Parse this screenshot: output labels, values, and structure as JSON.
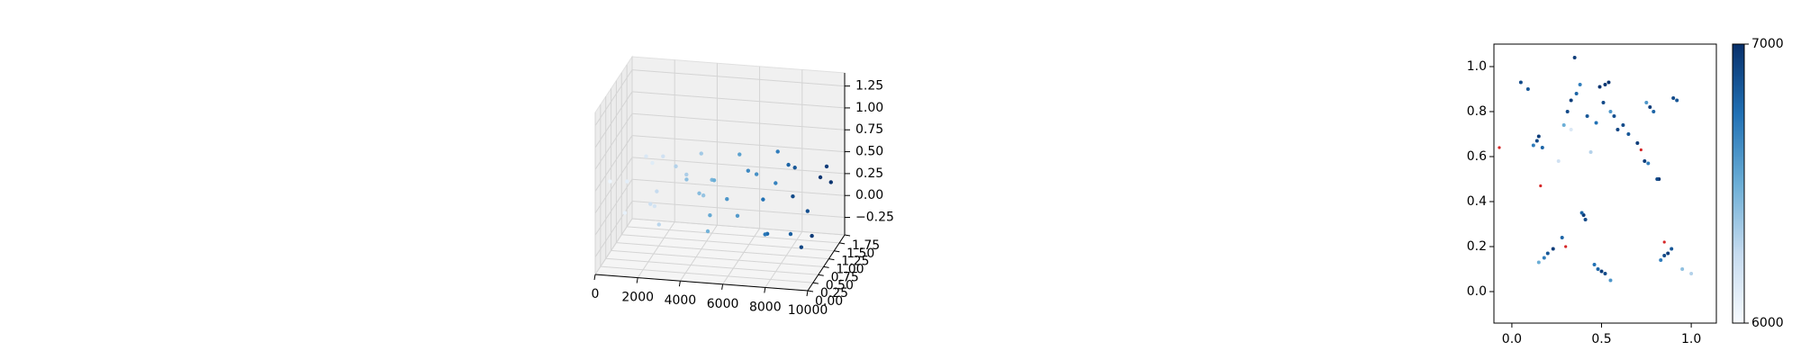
{
  "chart_data": [
    {
      "type": "scatter3d",
      "x": [
        500,
        1000,
        1500,
        2000,
        2500,
        3000,
        3500,
        4000,
        4500,
        5000,
        5500,
        6000,
        6500,
        7000,
        7500,
        8000,
        8500,
        9000,
        9500,
        9800,
        800,
        1800,
        2800,
        3800,
        4800,
        5800,
        6800,
        7800,
        8800,
        9600,
        1200,
        2200,
        3200,
        4200,
        5200,
        6200,
        7200,
        8200,
        9200,
        9900
      ],
      "y": [
        0.2,
        0.5,
        0.9,
        1.2,
        0.4,
        0.8,
        1.5,
        0.3,
        1.0,
        0.6,
        1.3,
        0.2,
        0.7,
        1.6,
        0.4,
        1.1,
        0.9,
        0.3,
        1.4,
        0.8,
        0.6,
        1.0,
        0.2,
        1.3,
        0.5,
        0.9,
        1.7,
        0.3,
        1.2,
        0.6,
        1.5,
        0.4,
        1.1,
        0.7,
        0.2,
        1.4,
        0.8,
        1.0,
        0.5,
        1.2
      ],
      "z": [
        0.55,
        0.45,
        0.6,
        0.5,
        0.4,
        0.55,
        0.45,
        0.6,
        0.35,
        0.5,
        0.55,
        0.45,
        0.6,
        0.5,
        0.4,
        0.55,
        0.6,
        0.5,
        0.45,
        0.55,
        0.05,
        0.0,
        0.1,
        0.05,
        -0.05,
        0.0,
        0.1,
        0.05,
        0.0,
        -0.05,
        0.3,
        0.25,
        0.35,
        0.3,
        0.25,
        0.3,
        -0.15,
        -0.2,
        -0.15,
        0.35
      ],
      "c": [
        6050,
        6100,
        6150,
        6200,
        6250,
        6300,
        6350,
        6400,
        6450,
        6500,
        6550,
        6600,
        6650,
        6700,
        6750,
        6800,
        6850,
        6900,
        6950,
        6980,
        6080,
        6180,
        6280,
        6380,
        6480,
        6580,
        6680,
        6780,
        6880,
        6960,
        6120,
        6220,
        6320,
        6420,
        6520,
        6620,
        6720,
        6820,
        6920,
        6990
      ],
      "cmap": [
        "#f7fbff",
        "#c6dbef",
        "#6baed6",
        "#2171b5",
        "#08306b"
      ],
      "clim": [
        6000,
        7000
      ],
      "xlim": [
        0,
        10000
      ],
      "ylim": [
        0,
        1.75
      ],
      "zlim": [
        -0.45,
        1.4
      ],
      "xticks": [
        0,
        2000,
        4000,
        6000,
        8000,
        10000
      ],
      "yticks": [
        {
          "value": 0,
          "label": "0.00"
        },
        {
          "value": 0.25,
          "label": "0.25"
        },
        {
          "value": 0.5,
          "label": "0.50"
        },
        {
          "value": 0.75,
          "label": "0.75"
        },
        {
          "value": 1,
          "label": "1.00"
        },
        {
          "value": 1.25,
          "label": "1.25"
        },
        {
          "value": 1.5,
          "label": "1.50"
        },
        {
          "value": 1.75,
          "label": "1.75"
        }
      ],
      "zticks": [
        {
          "value": -0.25,
          "label": "−0.25"
        },
        {
          "value": 0,
          "label": "0.00"
        },
        {
          "value": 0.25,
          "label": "0.25"
        },
        {
          "value": 0.5,
          "label": "0.50"
        },
        {
          "value": 0.75,
          "label": "0.75"
        },
        {
          "value": 1,
          "label": "1.00"
        },
        {
          "value": 1.25,
          "label": "1.25"
        }
      ]
    },
    {
      "type": "scatter",
      "x": [
        0.33,
        0.36,
        0.31,
        0.38,
        0.29,
        0.35,
        0.42,
        0.49,
        0.51,
        0.47,
        0.54,
        0.57,
        0.59,
        0.55,
        0.52,
        0.14,
        0.17,
        0.15,
        0.12,
        0.09,
        0.05,
        0.77,
        0.79,
        0.75,
        0.9,
        0.92,
        0.74,
        0.76,
        0.82,
        0.81,
        0.4,
        0.41,
        0.39,
        0.2,
        0.18,
        0.23,
        0.15,
        0.5,
        0.52,
        0.48,
        0.46,
        0.55,
        0.85,
        0.87,
        0.83,
        0.89,
        0.95,
        1.0,
        0.26,
        0.44,
        0.62,
        0.65,
        0.28,
        0.7,
        0.33
      ],
      "y": [
        0.85,
        0.88,
        0.8,
        0.92,
        0.74,
        1.04,
        0.78,
        0.91,
        0.84,
        0.75,
        0.93,
        0.78,
        0.72,
        0.8,
        0.92,
        0.67,
        0.64,
        0.69,
        0.65,
        0.9,
        0.93,
        0.82,
        0.8,
        0.84,
        0.86,
        0.85,
        0.58,
        0.57,
        0.5,
        0.5,
        0.34,
        0.32,
        0.35,
        0.17,
        0.15,
        0.19,
        0.13,
        0.09,
        0.08,
        0.1,
        0.12,
        0.05,
        0.16,
        0.17,
        0.14,
        0.19,
        0.1,
        0.08,
        0.58,
        0.62,
        0.74,
        0.7,
        0.24,
        0.66,
        0.72
      ],
      "c": [
        6950,
        6800,
        6900,
        6700,
        6500,
        6950,
        6850,
        6980,
        6900,
        6750,
        6990,
        6880,
        6920,
        6600,
        6970,
        6900,
        6800,
        6950,
        6700,
        6850,
        6900,
        6950,
        6800,
        6600,
        6900,
        6850,
        6950,
        6700,
        6990,
        6900,
        6950,
        6900,
        6800,
        6850,
        6700,
        6950,
        6500,
        6950,
        6900,
        6800,
        6750,
        6600,
        6900,
        6950,
        6700,
        6850,
        6400,
        6300,
        6200,
        6300,
        6900,
        6850,
        6800,
        6950,
        6150
      ],
      "highlight": {
        "color": "#d62728",
        "x": [
          -0.07,
          0.16,
          0.72,
          0.3,
          0.85
        ],
        "y": [
          0.64,
          0.47,
          0.63,
          0.2,
          0.22
        ]
      },
      "cmap": [
        "#f7fbff",
        "#c6dbef",
        "#6baed6",
        "#2171b5",
        "#08306b"
      ],
      "clim": [
        6000,
        7000
      ],
      "colorbar_ticks": [
        6000,
        7000
      ],
      "xlim": [
        -0.1,
        1.14
      ],
      "ylim": [
        -0.14,
        1.1
      ],
      "xticks": [
        {
          "value": 0,
          "label": "0.0"
        },
        {
          "value": 0.5,
          "label": "0.5"
        },
        {
          "value": 1,
          "label": "1.0"
        }
      ],
      "yticks": [
        {
          "value": 0,
          "label": "0.0"
        },
        {
          "value": 0.2,
          "label": "0.2"
        },
        {
          "value": 0.4,
          "label": "0.4"
        },
        {
          "value": 0.6,
          "label": "0.6"
        },
        {
          "value": 0.8,
          "label": "0.8"
        },
        {
          "value": 1,
          "label": "1.0"
        }
      ]
    }
  ]
}
